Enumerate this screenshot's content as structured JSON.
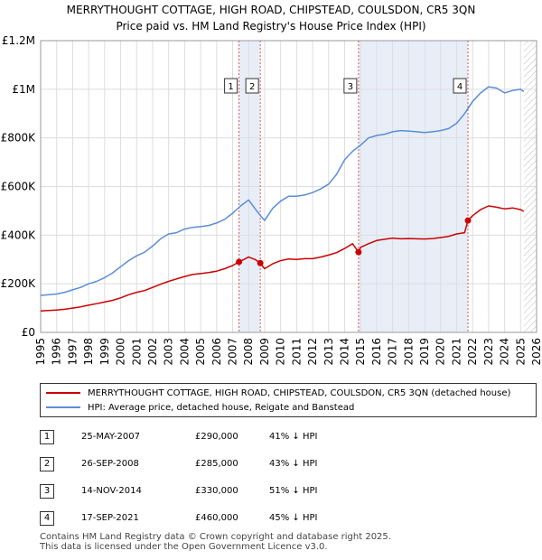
{
  "chart_data": {
    "type": "line",
    "title": "MERRYTHOUGHT COTTAGE, HIGH ROAD, CHIPSTEAD, COULSDON, CR5 3QN",
    "subtitle": "Price paid vs. HM Land Registry's House Price Index (HPI)",
    "xlim": [
      1995,
      2026
    ],
    "ylim": [
      0,
      1200000
    ],
    "x_ticks": [
      1995,
      1996,
      1997,
      1998,
      1999,
      2000,
      2001,
      2002,
      2003,
      2004,
      2005,
      2006,
      2007,
      2008,
      2009,
      2010,
      2011,
      2012,
      2013,
      2014,
      2015,
      2016,
      2017,
      2018,
      2019,
      2020,
      2021,
      2022,
      2023,
      2024,
      2025,
      2026
    ],
    "y_ticks": [
      {
        "value": 0,
        "label": "£0"
      },
      {
        "value": 200000,
        "label": "£200K"
      },
      {
        "value": 400000,
        "label": "£400K"
      },
      {
        "value": 600000,
        "label": "£600K"
      },
      {
        "value": 800000,
        "label": "£800K"
      },
      {
        "value": 1000000,
        "label": "£1M"
      },
      {
        "value": 1200000,
        "label": "£1.2M"
      }
    ],
    "grid": true,
    "colors": {
      "property": "#cc0000",
      "hpi": "#5b8dd6",
      "grid": "#dddddd",
      "band": "#e8eef8",
      "vline": "#dd5555",
      "future_hatch": "#bbbbbb"
    },
    "series": [
      {
        "name": "MERRYTHOUGHT COTTAGE, HIGH ROAD, CHIPSTEAD, COULSDON, CR5 3QN (detached house)",
        "key": "property",
        "x": [
          1995.0,
          1995.5,
          1996.0,
          1996.5,
          1997.0,
          1997.5,
          1998.0,
          1998.5,
          1999.0,
          1999.5,
          2000.0,
          2000.5,
          2001.0,
          2001.5,
          2002.0,
          2002.5,
          2003.0,
          2003.5,
          2004.0,
          2004.5,
          2005.0,
          2005.5,
          2006.0,
          2006.5,
          2007.0,
          2007.4,
          2007.7,
          2008.0,
          2008.4,
          2008.73,
          2009.0,
          2009.5,
          2010.0,
          2010.5,
          2011.0,
          2011.5,
          2012.0,
          2012.5,
          2013.0,
          2013.5,
          2014.0,
          2014.5,
          2014.87,
          2015.0,
          2015.5,
          2016.0,
          2016.5,
          2017.0,
          2017.5,
          2018.0,
          2018.5,
          2019.0,
          2019.5,
          2020.0,
          2020.5,
          2021.0,
          2021.5,
          2021.71,
          2022.0,
          2022.5,
          2023.0,
          2023.5,
          2024.0,
          2024.5,
          2025.0,
          2025.2
        ],
        "values": [
          88000,
          90000,
          92000,
          95000,
          100000,
          105000,
          112000,
          118000,
          125000,
          132000,
          142000,
          155000,
          165000,
          172000,
          185000,
          198000,
          210000,
          220000,
          230000,
          238000,
          242000,
          246000,
          252000,
          262000,
          275000,
          290000,
          300000,
          310000,
          300000,
          285000,
          262000,
          282000,
          295000,
          302000,
          300000,
          303000,
          303000,
          310000,
          318000,
          328000,
          345000,
          365000,
          330000,
          350000,
          365000,
          378000,
          383000,
          388000,
          385000,
          386000,
          385000,
          384000,
          386000,
          390000,
          395000,
          405000,
          410000,
          460000,
          480000,
          505000,
          520000,
          515000,
          508000,
          512000,
          505000,
          498000
        ]
      },
      {
        "name": "HPI: Average price, detached house, Reigate and Banstead",
        "key": "hpi",
        "x": [
          1995.0,
          1995.5,
          1996.0,
          1996.5,
          1997.0,
          1997.5,
          1998.0,
          1998.5,
          1999.0,
          1999.5,
          2000.0,
          2000.5,
          2001.0,
          2001.5,
          2002.0,
          2002.5,
          2003.0,
          2003.5,
          2004.0,
          2004.5,
          2005.0,
          2005.5,
          2006.0,
          2006.5,
          2007.0,
          2007.5,
          2008.0,
          2008.5,
          2009.0,
          2009.5,
          2010.0,
          2010.5,
          2011.0,
          2011.5,
          2012.0,
          2012.5,
          2013.0,
          2013.5,
          2014.0,
          2014.5,
          2015.0,
          2015.5,
          2016.0,
          2016.5,
          2017.0,
          2017.5,
          2018.0,
          2018.5,
          2019.0,
          2019.5,
          2020.0,
          2020.5,
          2021.0,
          2021.5,
          2022.0,
          2022.5,
          2023.0,
          2023.5,
          2024.0,
          2024.5,
          2025.0,
          2025.2
        ],
        "values": [
          152000,
          155000,
          158000,
          165000,
          175000,
          185000,
          200000,
          210000,
          225000,
          245000,
          270000,
          295000,
          315000,
          330000,
          355000,
          385000,
          405000,
          410000,
          425000,
          432000,
          435000,
          440000,
          450000,
          465000,
          490000,
          520000,
          545000,
          500000,
          460000,
          510000,
          540000,
          560000,
          560000,
          565000,
          575000,
          590000,
          610000,
          650000,
          710000,
          745000,
          770000,
          800000,
          810000,
          815000,
          825000,
          830000,
          828000,
          825000,
          822000,
          825000,
          830000,
          838000,
          860000,
          900000,
          950000,
          985000,
          1010000,
          1005000,
          985000,
          995000,
          1000000,
          990000
        ]
      }
    ],
    "sales": [
      {
        "label": "1",
        "x": 2007.4,
        "value": 290000
      },
      {
        "label": "2",
        "x": 2008.73,
        "value": 285000
      },
      {
        "label": "3",
        "x": 2014.87,
        "value": 330000
      },
      {
        "label": "4",
        "x": 2021.71,
        "value": 460000
      }
    ],
    "future_from": 2025.2
  },
  "legend": {
    "property_label": "MERRYTHOUGHT COTTAGE, HIGH ROAD, CHIPSTEAD, COULSDON, CR5 3QN (detached house)",
    "hpi_label": "HPI: Average price, detached house, Reigate and Banstead"
  },
  "sales_table": [
    {
      "num": "1",
      "date": "25-MAY-2007",
      "price": "£290,000",
      "hpi": "41% ↓ HPI"
    },
    {
      "num": "2",
      "date": "26-SEP-2008",
      "price": "£285,000",
      "hpi": "43% ↓ HPI"
    },
    {
      "num": "3",
      "date": "14-NOV-2014",
      "price": "£330,000",
      "hpi": "51% ↓ HPI"
    },
    {
      "num": "4",
      "date": "17-SEP-2021",
      "price": "£460,000",
      "hpi": "45% ↓ HPI"
    }
  ],
  "footer": {
    "line1": "Contains HM Land Registry data © Crown copyright and database right 2025.",
    "line2": "This data is licensed under the Open Government Licence v3.0."
  }
}
